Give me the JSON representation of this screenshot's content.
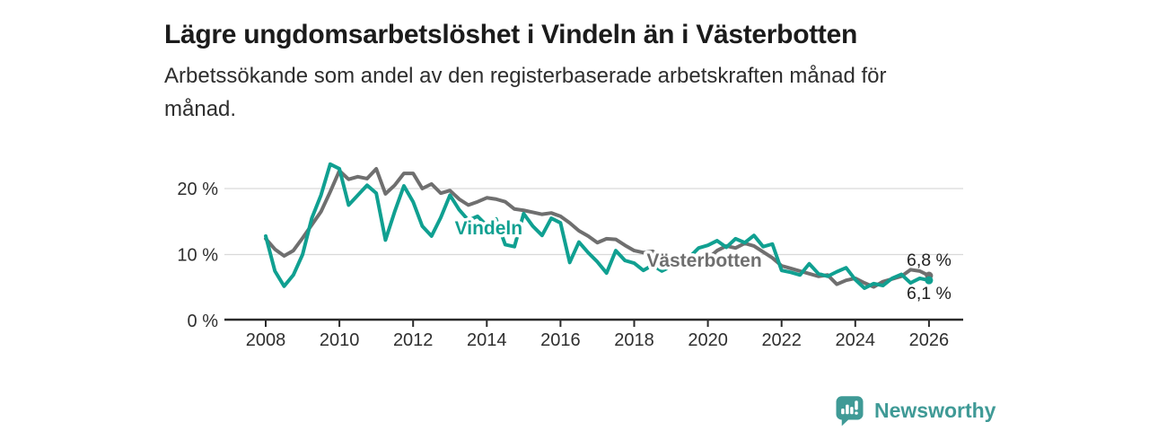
{
  "header": {
    "title": "Lägre ungdomsarbetslöshet i Vindeln än i Västerbotten",
    "subtitle_line1": "Arbetssökande som andel av den registerbaserade arbetskraften månad för",
    "subtitle_line2": "månad."
  },
  "footer": {
    "brand": "Newsworthy",
    "brand_color": "#3f9a96",
    "logo_icon": "bar-chart-speech-bubble-icon"
  },
  "chart_data": {
    "type": "line",
    "title": "Lägre ungdomsarbetslöshet i Vindeln än i Västerbotten",
    "xlabel": "",
    "ylabel": "Arbetssökande som andel av den registerbaserade arbetskraften",
    "unit": "%",
    "x_start": 2008,
    "x_step": 0.25,
    "x_ticks": [
      2008,
      2010,
      2012,
      2014,
      2016,
      2018,
      2020,
      2022,
      2024,
      2026
    ],
    "y_ticks": [
      {
        "value": 0,
        "label": "0 %"
      },
      {
        "value": 10,
        "label": "10 %"
      },
      {
        "value": 20,
        "label": "20 %"
      }
    ],
    "ylim": [
      0,
      24.5
    ],
    "grid": "horizontal",
    "legend_position": "inline-labels",
    "colors": {
      "grid": "#d9d9d9",
      "axis": "#2a2a2a",
      "tick_text": "#2f2f2f",
      "end_label_text": "#222222"
    },
    "series": [
      {
        "name": "Västerbotten",
        "color": "#6f6f6f",
        "end_label": "6,8 %",
        "end_label_dy": -11,
        "label_x": 2019.9,
        "label_y": 9.1,
        "values": [
          12.4,
          10.8,
          9.8,
          10.6,
          12.5,
          14.5,
          16.5,
          19.5,
          22.7,
          21.4,
          21.8,
          21.5,
          23.0,
          19.2,
          20.5,
          22.3,
          22.3,
          20.0,
          20.7,
          19.3,
          19.7,
          18.4,
          17.5,
          18.0,
          18.6,
          18.4,
          18.0,
          16.9,
          16.7,
          16.4,
          16.1,
          16.3,
          15.8,
          14.8,
          13.6,
          12.8,
          11.8,
          12.4,
          12.3,
          11.4,
          10.6,
          10.3,
          10.5,
          9.7,
          9.2,
          8.7,
          8.1,
          8.8,
          9.4,
          10.6,
          11.3,
          11.0,
          11.7,
          11.3,
          10.4,
          9.5,
          8.3,
          7.9,
          7.5,
          7.1,
          6.7,
          6.9,
          5.5,
          6.1,
          6.4,
          5.7,
          5.1,
          5.9,
          6.3,
          6.7,
          7.7,
          7.5,
          6.8
        ]
      },
      {
        "name": "Vindeln",
        "color": "#10a091",
        "end_label": "6,1 %",
        "end_label_dy": 21,
        "label_x": 2014.05,
        "label_y": 14.0,
        "values": [
          12.8,
          7.5,
          5.2,
          6.9,
          10.0,
          15.5,
          19.0,
          23.7,
          23.0,
          17.5,
          19.0,
          20.5,
          19.3,
          12.2,
          16.5,
          20.4,
          18.0,
          14.3,
          12.8,
          15.6,
          19.0,
          16.8,
          15.2,
          15.8,
          14.4,
          15.4,
          11.5,
          11.2,
          16.2,
          14.3,
          12.9,
          15.5,
          14.8,
          8.8,
          11.9,
          10.3,
          8.9,
          7.2,
          10.6,
          9.1,
          8.7,
          7.6,
          8.4,
          7.5,
          8.2,
          8.5,
          9.6,
          11.0,
          11.4,
          12.1,
          11.1,
          12.4,
          11.8,
          12.9,
          11.2,
          11.6,
          7.6,
          7.3,
          6.9,
          8.6,
          7.1,
          6.7,
          7.4,
          8.0,
          6.2,
          4.9,
          5.6,
          5.3,
          6.4,
          7.0,
          5.7,
          6.4,
          6.1
        ]
      }
    ]
  }
}
